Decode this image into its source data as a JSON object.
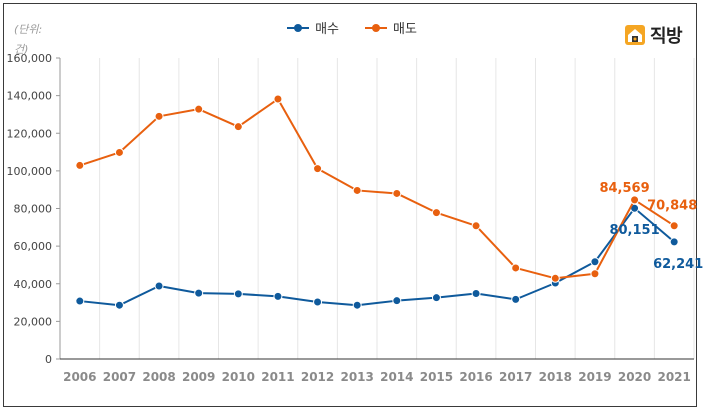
{
  "unit_label": "(단위: 건)",
  "brand": {
    "name": "직방",
    "icon": "house-logo-icon",
    "color": "#f5a623"
  },
  "chart_data": {
    "type": "line",
    "x": [
      "2006",
      "2007",
      "2008",
      "2009",
      "2010",
      "2011",
      "2012",
      "2013",
      "2014",
      "2015",
      "2016",
      "2017",
      "2018",
      "2019",
      "2020",
      "2021"
    ],
    "ylim": [
      0,
      160000
    ],
    "yticks": [
      0,
      20000,
      40000,
      60000,
      80000,
      100000,
      120000,
      140000,
      160000
    ],
    "ytick_labels": [
      "0",
      "20,000",
      "40,000",
      "60,000",
      "80,000",
      "100,000",
      "120,000",
      "140,000",
      "160,000"
    ],
    "grid": "vertical",
    "legend": "top-center",
    "series": [
      {
        "name": "매수",
        "color": "#0f5a9c",
        "values": [
          30800,
          28600,
          38800,
          35000,
          34600,
          33300,
          30300,
          28600,
          31000,
          32600,
          34800,
          31700,
          40400,
          51700,
          80151,
          62241
        ],
        "labels": [
          {
            "index": 14,
            "text": "80,151"
          },
          {
            "index": 15,
            "text": "62,241"
          }
        ]
      },
      {
        "name": "매도",
        "color": "#e8600f",
        "values": [
          102900,
          109800,
          129000,
          132800,
          123500,
          138200,
          101200,
          89600,
          88000,
          77800,
          70800,
          48400,
          42900,
          45300,
          84569,
          70848
        ],
        "labels": [
          {
            "index": 14,
            "text": "84,569"
          },
          {
            "index": 15,
            "text": "70,848"
          }
        ]
      }
    ]
  }
}
